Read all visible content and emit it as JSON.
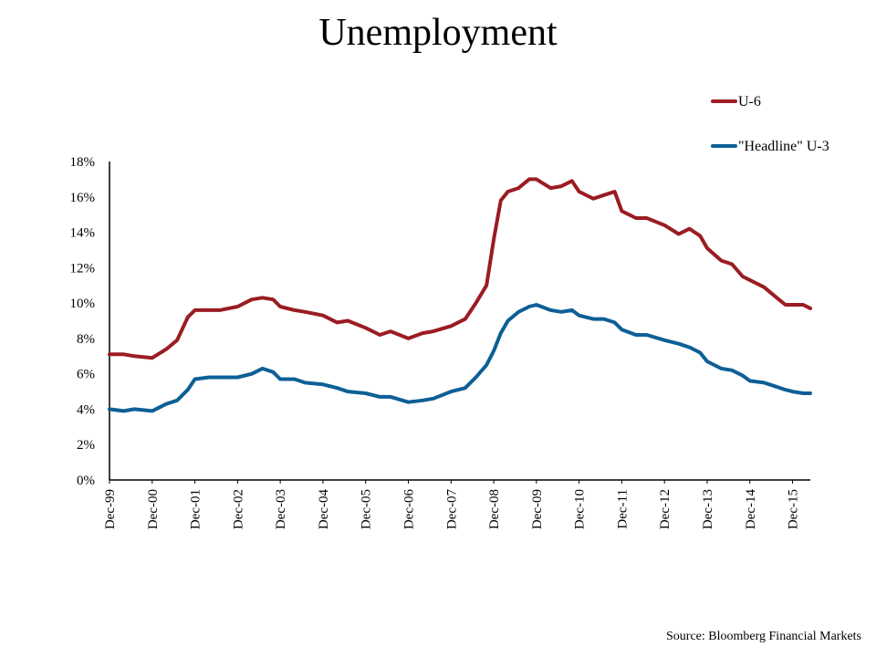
{
  "title": "Unemployment",
  "source": "Source: Bloomberg Financial Markets",
  "chart_data": {
    "type": "line",
    "title": "Unemployment",
    "xlabel": "",
    "ylabel": "",
    "ylim": [
      0,
      18
    ],
    "y_ticks": [
      "0%",
      "2%",
      "4%",
      "6%",
      "8%",
      "10%",
      "12%",
      "14%",
      "16%",
      "18%"
    ],
    "x_range": [
      1999.917,
      2016.333
    ],
    "x_ticks": [
      "Dec-99",
      "Dec-00",
      "Dec-01",
      "Dec-02",
      "Dec-03",
      "Dec-04",
      "Dec-05",
      "Dec-06",
      "Dec-07",
      "Dec-08",
      "Dec-09",
      "Dec-10",
      "Dec-11",
      "Dec-12",
      "Dec-13",
      "Dec-14",
      "Dec-15"
    ],
    "grid": false,
    "legend": "top-right",
    "series": [
      {
        "name": "U-6",
        "color": "#9b1c22",
        "points": [
          [
            1999.917,
            7.1
          ],
          [
            2000.25,
            7.1
          ],
          [
            2000.5,
            7.0
          ],
          [
            2000.917,
            6.9
          ],
          [
            2001.25,
            7.4
          ],
          [
            2001.5,
            7.9
          ],
          [
            2001.75,
            9.2
          ],
          [
            2001.917,
            9.6
          ],
          [
            2002.25,
            9.6
          ],
          [
            2002.5,
            9.6
          ],
          [
            2002.917,
            9.8
          ],
          [
            2003.25,
            10.2
          ],
          [
            2003.5,
            10.3
          ],
          [
            2003.75,
            10.2
          ],
          [
            2003.917,
            9.8
          ],
          [
            2004.25,
            9.6
          ],
          [
            2004.5,
            9.5
          ],
          [
            2004.917,
            9.3
          ],
          [
            2005.25,
            8.9
          ],
          [
            2005.5,
            9.0
          ],
          [
            2005.917,
            8.6
          ],
          [
            2006.25,
            8.2
          ],
          [
            2006.5,
            8.4
          ],
          [
            2006.917,
            8.0
          ],
          [
            2007.25,
            8.3
          ],
          [
            2007.5,
            8.4
          ],
          [
            2007.917,
            8.7
          ],
          [
            2008.25,
            9.1
          ],
          [
            2008.5,
            10.0
          ],
          [
            2008.75,
            11.0
          ],
          [
            2008.917,
            13.6
          ],
          [
            2009.083,
            15.8
          ],
          [
            2009.25,
            16.3
          ],
          [
            2009.5,
            16.5
          ],
          [
            2009.75,
            17.0
          ],
          [
            2009.917,
            17.0
          ],
          [
            2010.25,
            16.5
          ],
          [
            2010.5,
            16.6
          ],
          [
            2010.75,
            16.9
          ],
          [
            2010.917,
            16.3
          ],
          [
            2011.25,
            15.9
          ],
          [
            2011.5,
            16.1
          ],
          [
            2011.75,
            16.3
          ],
          [
            2011.917,
            15.2
          ],
          [
            2012.25,
            14.8
          ],
          [
            2012.5,
            14.8
          ],
          [
            2012.917,
            14.4
          ],
          [
            2013.25,
            13.9
          ],
          [
            2013.5,
            14.2
          ],
          [
            2013.75,
            13.8
          ],
          [
            2013.917,
            13.1
          ],
          [
            2014.25,
            12.4
          ],
          [
            2014.5,
            12.2
          ],
          [
            2014.75,
            11.5
          ],
          [
            2014.917,
            11.3
          ],
          [
            2015.25,
            10.9
          ],
          [
            2015.5,
            10.4
          ],
          [
            2015.75,
            9.9
          ],
          [
            2015.917,
            9.9
          ],
          [
            2016.167,
            9.9
          ],
          [
            2016.333,
            9.7
          ]
        ]
      },
      {
        "name": "\"Headline\" U-3",
        "color": "#0d5f96",
        "points": [
          [
            1999.917,
            4.0
          ],
          [
            2000.25,
            3.9
          ],
          [
            2000.5,
            4.0
          ],
          [
            2000.917,
            3.9
          ],
          [
            2001.25,
            4.3
          ],
          [
            2001.5,
            4.5
          ],
          [
            2001.75,
            5.1
          ],
          [
            2001.917,
            5.7
          ],
          [
            2002.25,
            5.8
          ],
          [
            2002.5,
            5.8
          ],
          [
            2002.917,
            5.8
          ],
          [
            2003.25,
            6.0
          ],
          [
            2003.5,
            6.3
          ],
          [
            2003.75,
            6.1
          ],
          [
            2003.917,
            5.7
          ],
          [
            2004.25,
            5.7
          ],
          [
            2004.5,
            5.5
          ],
          [
            2004.917,
            5.4
          ],
          [
            2005.25,
            5.2
          ],
          [
            2005.5,
            5.0
          ],
          [
            2005.917,
            4.9
          ],
          [
            2006.25,
            4.7
          ],
          [
            2006.5,
            4.7
          ],
          [
            2006.917,
            4.4
          ],
          [
            2007.25,
            4.5
          ],
          [
            2007.5,
            4.6
          ],
          [
            2007.917,
            5.0
          ],
          [
            2008.25,
            5.2
          ],
          [
            2008.5,
            5.8
          ],
          [
            2008.75,
            6.5
          ],
          [
            2008.917,
            7.3
          ],
          [
            2009.083,
            8.3
          ],
          [
            2009.25,
            9.0
          ],
          [
            2009.5,
            9.5
          ],
          [
            2009.75,
            9.8
          ],
          [
            2009.917,
            9.9
          ],
          [
            2010.25,
            9.6
          ],
          [
            2010.5,
            9.5
          ],
          [
            2010.75,
            9.6
          ],
          [
            2010.917,
            9.3
          ],
          [
            2011.25,
            9.1
          ],
          [
            2011.5,
            9.1
          ],
          [
            2011.75,
            8.9
          ],
          [
            2011.917,
            8.5
          ],
          [
            2012.25,
            8.2
          ],
          [
            2012.5,
            8.2
          ],
          [
            2012.917,
            7.9
          ],
          [
            2013.25,
            7.7
          ],
          [
            2013.5,
            7.5
          ],
          [
            2013.75,
            7.2
          ],
          [
            2013.917,
            6.7
          ],
          [
            2014.25,
            6.3
          ],
          [
            2014.5,
            6.2
          ],
          [
            2014.75,
            5.9
          ],
          [
            2014.917,
            5.6
          ],
          [
            2015.25,
            5.5
          ],
          [
            2015.5,
            5.3
          ],
          [
            2015.75,
            5.1
          ],
          [
            2015.917,
            5.0
          ],
          [
            2016.167,
            4.9
          ],
          [
            2016.333,
            4.9
          ]
        ]
      }
    ]
  }
}
